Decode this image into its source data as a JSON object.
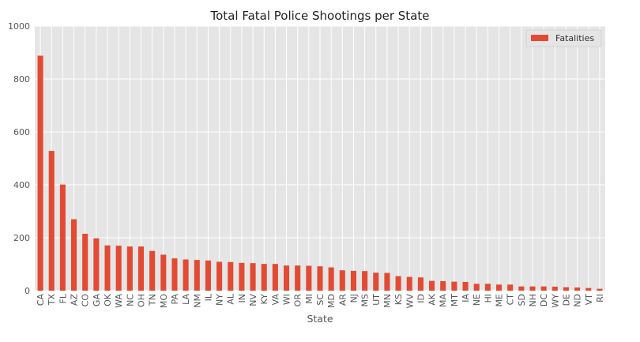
{
  "chart_data": {
    "type": "bar",
    "title": "Total Fatal Police Shootings per State",
    "xlabel": "State",
    "ylabel": "",
    "ylim": [
      0,
      1000
    ],
    "yticks": [
      0,
      200,
      400,
      600,
      800,
      1000
    ],
    "grid": true,
    "legend": "top-right",
    "categories": [
      "CA",
      "TX",
      "FL",
      "AZ",
      "CO",
      "GA",
      "OK",
      "WA",
      "NC",
      "OH",
      "TN",
      "MO",
      "PA",
      "LA",
      "NM",
      "IL",
      "NY",
      "AL",
      "IN",
      "NV",
      "KY",
      "VA",
      "WI",
      "OR",
      "MI",
      "SC",
      "MD",
      "AR",
      "NJ",
      "MS",
      "UT",
      "MN",
      "KS",
      "WV",
      "ID",
      "AK",
      "MA",
      "MT",
      "IA",
      "NE",
      "HI",
      "ME",
      "CT",
      "SD",
      "NH",
      "DC",
      "WY",
      "DE",
      "ND",
      "VT",
      "RI"
    ],
    "series": [
      {
        "name": "Fatalities",
        "color": "#e24a33",
        "values": [
          888,
          528,
          401,
          270,
          215,
          198,
          171,
          170,
          167,
          167,
          150,
          136,
          122,
          118,
          116,
          114,
          109,
          108,
          105,
          104,
          101,
          101,
          95,
          95,
          94,
          92,
          88,
          77,
          75,
          74,
          68,
          67,
          55,
          52,
          50,
          37,
          36,
          34,
          33,
          26,
          26,
          23,
          23,
          16,
          16,
          16,
          15,
          13,
          12,
          10,
          7
        ]
      }
    ]
  }
}
